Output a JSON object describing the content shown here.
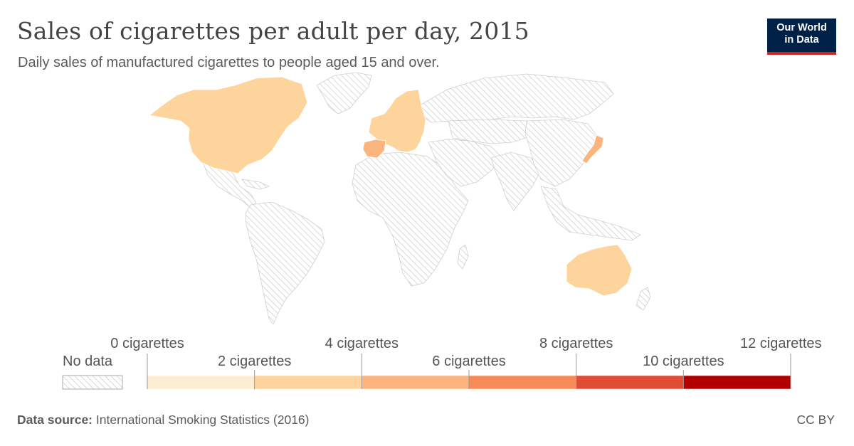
{
  "header": {
    "title": "Sales of cigarettes per adult per day, 2015",
    "subtitle": "Daily sales of manufactured cigarettes to people aged 15 and over."
  },
  "logo": {
    "line1": "Our World",
    "line2": "in Data"
  },
  "legend": {
    "no_data_label": "No data",
    "tick_labels": [
      "0 cigarettes",
      "2 cigarettes",
      "4 cigarettes",
      "6 cigarettes",
      "8 cigarettes",
      "10 cigarettes",
      "12 cigarettes"
    ],
    "bin_colors": [
      "#feedd5",
      "#fdd49b",
      "#fbb47e",
      "#f78b57",
      "#e04b33",
      "#b20000"
    ]
  },
  "map_data": {
    "type": "choropleth",
    "year": 2015,
    "unit": "cigarettes per adult per day",
    "no_data_pattern_color": "#d0d0d0",
    "regions_with_data": [
      {
        "region": "north-america",
        "bin": 1
      },
      {
        "region": "europe",
        "bin": 1
      },
      {
        "region": "spain",
        "bin": 2
      },
      {
        "region": "japan",
        "bin": 2
      },
      {
        "region": "australia",
        "bin": 1
      }
    ]
  },
  "footer": {
    "source_label": "Data source:",
    "source_text": "International Smoking Statistics (2016)",
    "license": "CC BY"
  }
}
